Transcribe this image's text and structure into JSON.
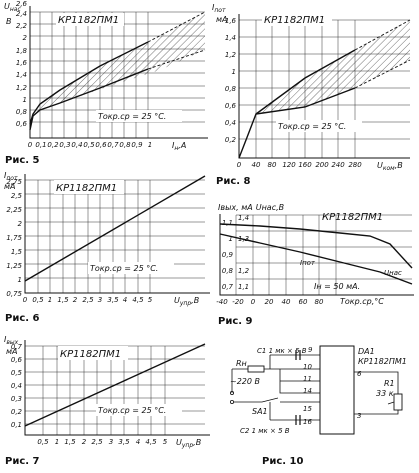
{
  "figures": {
    "fig5": {
      "caption": "Рис. 5",
      "chip": "КР1182ПМ1",
      "y_unit_1": "U",
      "y_unit_2": "нас",
      "y_unit_3": "В",
      "x_label": "I",
      "x_label_sub": "н",
      "x_unit": ",А",
      "temp": "Tокр.ср = 25 °C.",
      "y_ticks": [
        "0,6",
        "0,8",
        "1",
        "1,2",
        "1,4",
        "1,6",
        "1,8",
        "2",
        "2,2",
        "2,4",
        "2,6"
      ],
      "x_ticks": [
        "0",
        "0,1",
        "0,2",
        "0,3",
        "0,4",
        "0,5",
        "0,6",
        "0,7",
        "0,8",
        "0,9",
        "1"
      ]
    },
    "fig8": {
      "caption": "Рис. 8",
      "chip": "КР1182ПМ1",
      "y_unit_1": "I",
      "y_unit_2": "пот",
      "y_unit_3": "мА",
      "x_label": "U",
      "x_label_sub": "ком",
      "x_unit": ",В",
      "temp": "Tокр.ср = 25 °C.",
      "y_ticks": [
        "0,2",
        "0,4",
        "0,6",
        "0,8",
        "1",
        "1,2",
        "1,4",
        "1,6"
      ],
      "x_ticks": [
        "0",
        "40",
        "80",
        "120",
        "160",
        "200",
        "240",
        "280"
      ]
    },
    "fig6": {
      "caption": "Рис. 6",
      "chip": "КР1182ПМ1",
      "y_unit_1": "I",
      "y_unit_2": "пот",
      "y_unit_3": "мА",
      "x_label": "U",
      "x_label_sub": "упр",
      "x_unit": ",В",
      "temp": "Tокр.ср = 25 °C.",
      "y_ticks": [
        "0,75",
        "1",
        "1,25",
        "1,5",
        "1,75",
        "2",
        "2,25",
        "2,5",
        "2,75"
      ],
      "x_ticks": [
        "0",
        "0,5",
        "1",
        "1,5",
        "2",
        "2,5",
        "3",
        "3,5",
        "4",
        "4,5",
        "5"
      ]
    },
    "fig9": {
      "caption": "Рис. 9",
      "chip": "КР1182ПМ1",
      "y_label_1": "Iвых",
      "y_label_2": ", мА",
      "y_label_3": "Uнас",
      "y_label_4": ",В",
      "y_ticks_left": [
        "0,7",
        "0,8",
        "0,9",
        "1",
        "1,1"
      ],
      "y_ticks_right": [
        "1,1",
        "1,2",
        "1,3",
        "1,4"
      ],
      "x_label": "Tокр.ср",
      "x_unit": ",°C",
      "x_ticks": [
        "-40",
        "-20",
        "0",
        "20",
        "40",
        "60",
        "80"
      ],
      "curve_ipot": "Iпот",
      "curve_unas": "Uнас",
      "note": "Iн = 50 мА."
    },
    "fig7": {
      "caption": "Рис. 7",
      "chip": "КР1182ПМ1",
      "y_unit_1": "I",
      "y_unit_2": "вых",
      "y_unit_3": "мА",
      "x_label": "U",
      "x_label_sub": "упр",
      "x_unit": ",В",
      "temp": "Tокр.ср = 25 °C.",
      "y_ticks": [
        "0,1",
        "0,2",
        "0,3",
        "0,4",
        "0,5",
        "0,6",
        "0,7"
      ],
      "x_ticks": [
        "0,5",
        "1",
        "1,5",
        "2",
        "2,5",
        "3",
        "3,5",
        "4",
        "4,5",
        "5"
      ]
    },
    "fig10": {
      "caption": "Рис. 10",
      "chip_ref": "DA1",
      "chip": "КР1182ПМ1",
      "c1": "C1  1 мк × 5 В",
      "c2": "C2  1 мк × 5 В",
      "rn": "Rн",
      "sa1": "SA1",
      "mains": "~220 В",
      "r1": "R1",
      "r1_val": "33 к",
      "pins_left": [
        "9",
        "10",
        "11",
        "14",
        "15",
        "16"
      ],
      "pins_right": [
        "6",
        "3"
      ]
    }
  }
}
